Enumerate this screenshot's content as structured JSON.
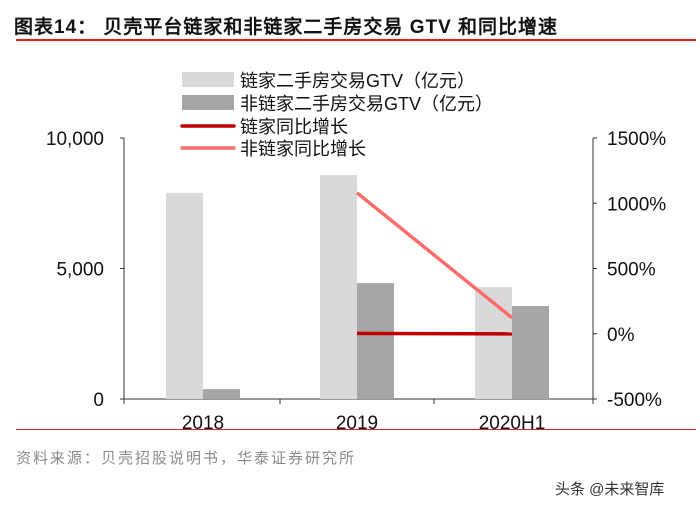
{
  "header": {
    "title": "图表14：  贝壳平台链家和非链家二手房交易 GTV 和同比增速"
  },
  "footer": {
    "source": "资料来源：贝壳招股说明书，华泰证券研究所",
    "watermark": "头条 @未来智库"
  },
  "chart_data": {
    "type": "bar+line",
    "categories": [
      "2018",
      "2019",
      "2020H1"
    ],
    "series": [
      {
        "name": "链家二手房交易GTV（亿元）",
        "kind": "bar",
        "axis": "left",
        "color": "#d9d9d9",
        "values": [
          7900,
          8580,
          4290
        ]
      },
      {
        "name": "非链家二手房交易GTV（亿元）",
        "kind": "bar",
        "axis": "left",
        "color": "#a6a6a6",
        "values": [
          380,
          4440,
          3560
        ]
      },
      {
        "name": "链家同比增长",
        "kind": "line",
        "axis": "right",
        "color": "#c00000",
        "values": [
          null,
          3,
          -1
        ]
      },
      {
        "name": "非链家同比增长",
        "kind": "line",
        "axis": "right",
        "color": "#ff6b6b",
        "values": [
          null,
          1080,
          122
        ]
      }
    ],
    "left_axis": {
      "ylim": [
        0,
        10000
      ],
      "ticks": [
        "0",
        "5,000",
        "10,000"
      ],
      "tick_values": [
        0,
        5000,
        10000
      ]
    },
    "right_axis": {
      "ylim": [
        -500,
        1500
      ],
      "ticks": [
        "-500%",
        "0%",
        "500%",
        "1000%",
        "1500%"
      ],
      "tick_values": [
        -500,
        0,
        500,
        1000,
        1500
      ]
    },
    "legend": "top-center",
    "grid": false
  }
}
